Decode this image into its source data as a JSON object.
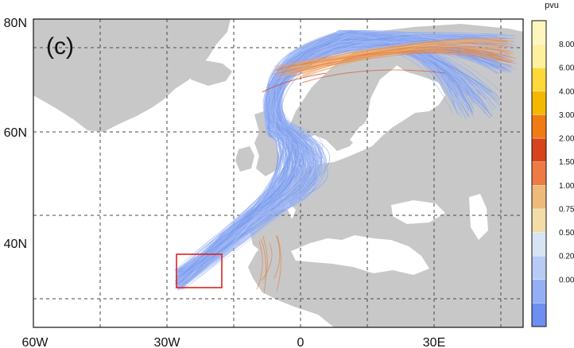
{
  "panel_label": "(c)",
  "map": {
    "lat_labels": [
      "80N",
      "60N",
      "40N"
    ],
    "lon_labels": [
      "60W",
      "30W",
      "0",
      "30E"
    ]
  },
  "colorbar": {
    "unit": "pvu",
    "levels": [
      "8.00",
      "6.00",
      "4.00",
      "3.00",
      "2.00",
      "1.50",
      "1.00",
      "0.75",
      "0.50",
      "0.20",
      "0.00"
    ],
    "colors": [
      "#fdf7bf",
      "#fff0a0",
      "#ffd93a",
      "#f4b800",
      "#f07a14",
      "#d8421e",
      "#ee7b43",
      "#eeb97a",
      "#f2dca8",
      "#d6e4f4",
      "#b8cbf6",
      "#95aff4",
      "#6e8ff0"
    ]
  },
  "colors": {
    "land": "#c8c8c8",
    "ocean": "#ffffff",
    "trajectory_main": "#7f9ff0",
    "trajectory_warm": "#e57f3c",
    "box": "#dd2222"
  }
}
